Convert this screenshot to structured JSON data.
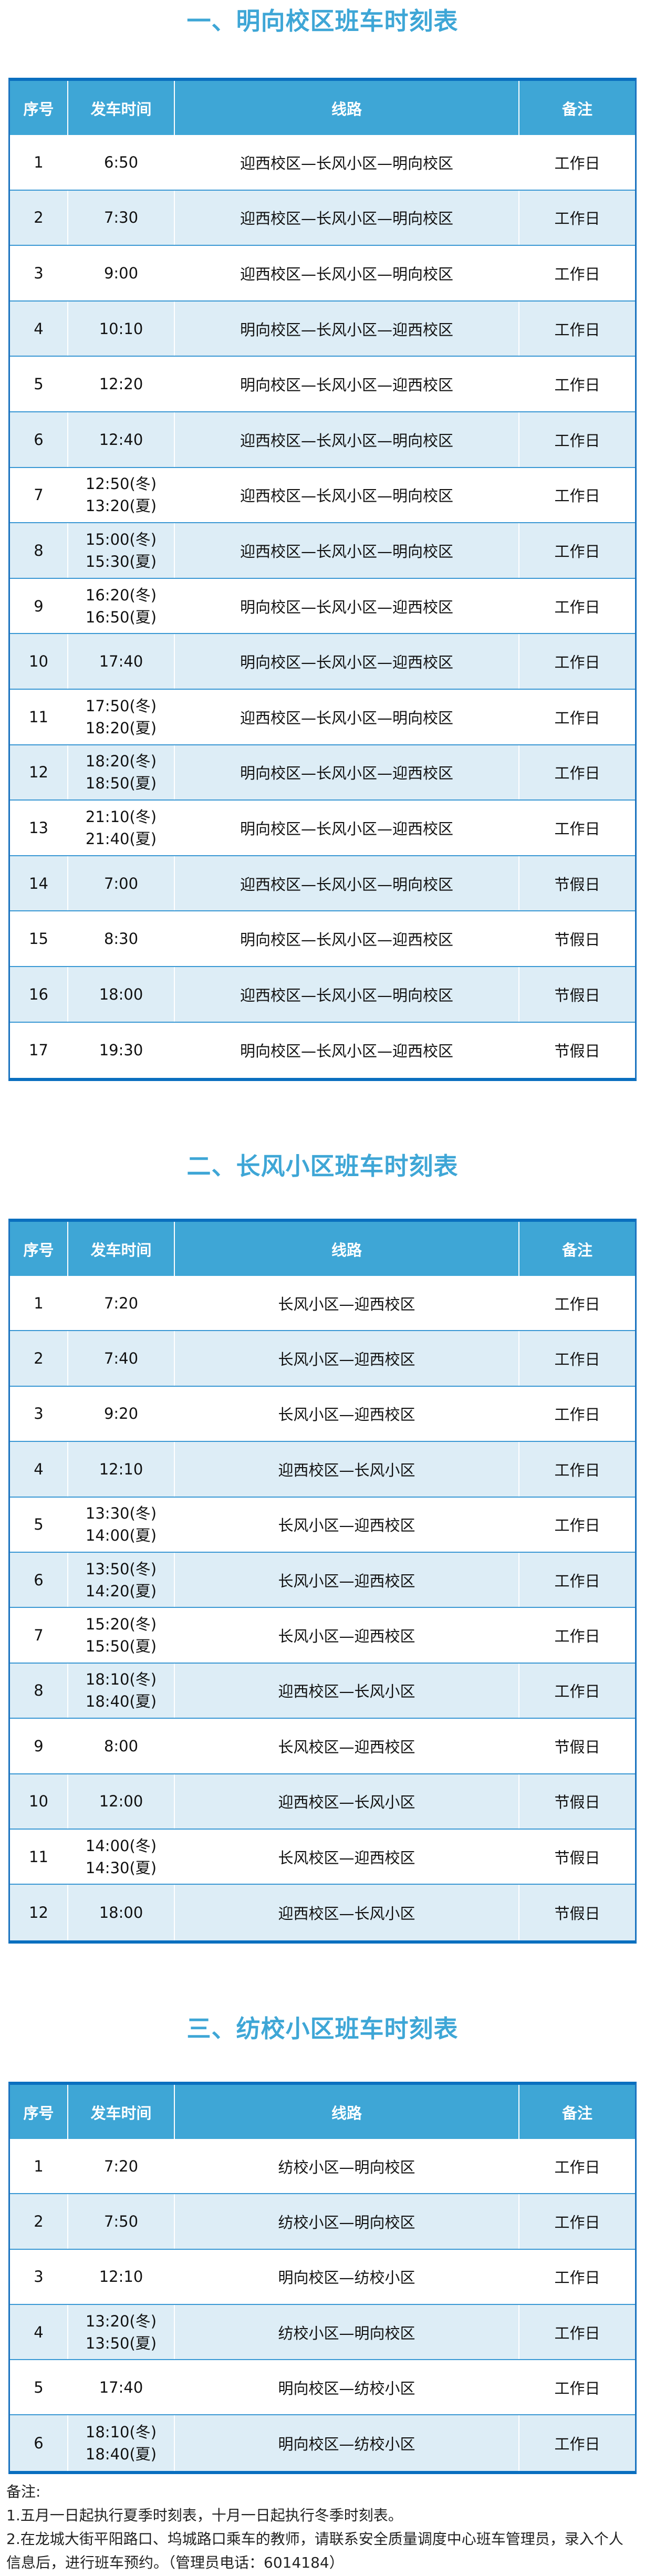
{
  "columns": [
    "序号",
    "发车时间",
    "线路",
    "备注"
  ],
  "sections": [
    {
      "title": "一、明向校区班车时刻表",
      "rows": [
        {
          "no": "1",
          "time": [
            "6:50"
          ],
          "route": "迎西校区—长风小区—明向校区",
          "note": "工作日"
        },
        {
          "no": "2",
          "time": [
            "7:30"
          ],
          "route": "迎西校区—长风小区—明向校区",
          "note": "工作日"
        },
        {
          "no": "3",
          "time": [
            "9:00"
          ],
          "route": "迎西校区—长风小区—明向校区",
          "note": "工作日"
        },
        {
          "no": "4",
          "time": [
            "10:10"
          ],
          "route": "明向校区—长风小区—迎西校区",
          "note": "工作日"
        },
        {
          "no": "5",
          "time": [
            "12:20"
          ],
          "route": "明向校区—长风小区—迎西校区",
          "note": "工作日"
        },
        {
          "no": "6",
          "time": [
            "12:40"
          ],
          "route": "迎西校区—长风小区—明向校区",
          "note": "工作日"
        },
        {
          "no": "7",
          "time": [
            "12:50(冬)",
            "13:20(夏)"
          ],
          "route": "迎西校区—长风小区—明向校区",
          "note": "工作日"
        },
        {
          "no": "8",
          "time": [
            "15:00(冬)",
            "15:30(夏)"
          ],
          "route": "迎西校区—长风小区—明向校区",
          "note": "工作日"
        },
        {
          "no": "9",
          "time": [
            "16:20(冬)",
            "16:50(夏)"
          ],
          "route": "明向校区—长风小区—迎西校区",
          "note": "工作日"
        },
        {
          "no": "10",
          "time": [
            "17:40"
          ],
          "route": "明向校区—长风小区—迎西校区",
          "note": "工作日"
        },
        {
          "no": "11",
          "time": [
            "17:50(冬)",
            "18:20(夏)"
          ],
          "route": "迎西校区—长风小区—明向校区",
          "note": "工作日"
        },
        {
          "no": "12",
          "time": [
            "18:20(冬)",
            "18:50(夏)"
          ],
          "route": "明向校区—长风小区—迎西校区",
          "note": "工作日"
        },
        {
          "no": "13",
          "time": [
            "21:10(冬)",
            "21:40(夏)"
          ],
          "route": "明向校区—长风小区—迎西校区",
          "note": "工作日"
        },
        {
          "no": "14",
          "time": [
            "7:00"
          ],
          "route": "迎西校区—长风小区—明向校区",
          "note": "节假日"
        },
        {
          "no": "15",
          "time": [
            "8:30"
          ],
          "route": "明向校区—长风小区—迎西校区",
          "note": "节假日"
        },
        {
          "no": "16",
          "time": [
            "18:00"
          ],
          "route": "迎西校区—长风小区—明向校区",
          "note": "节假日"
        },
        {
          "no": "17",
          "time": [
            "19:30"
          ],
          "route": "明向校区—长风小区—迎西校区",
          "note": "节假日"
        }
      ]
    },
    {
      "title": "二、长风小区班车时刻表",
      "rows": [
        {
          "no": "1",
          "time": [
            "7:20"
          ],
          "route": "长风小区—迎西校区",
          "note": "工作日"
        },
        {
          "no": "2",
          "time": [
            "7:40"
          ],
          "route": "长风小区—迎西校区",
          "note": "工作日"
        },
        {
          "no": "3",
          "time": [
            "9:20"
          ],
          "route": "长风小区—迎西校区",
          "note": "工作日"
        },
        {
          "no": "4",
          "time": [
            "12:10"
          ],
          "route": "迎西校区—长风小区",
          "note": "工作日"
        },
        {
          "no": "5",
          "time": [
            "13:30(冬)",
            "14:00(夏)"
          ],
          "route": "长风小区—迎西校区",
          "note": "工作日"
        },
        {
          "no": "6",
          "time": [
            "13:50(冬)",
            "14:20(夏)"
          ],
          "route": "长风小区—迎西校区",
          "note": "工作日"
        },
        {
          "no": "7",
          "time": [
            "15:20(冬)",
            "15:50(夏)"
          ],
          "route": "长风小区—迎西校区",
          "note": "工作日"
        },
        {
          "no": "8",
          "time": [
            "18:10(冬)",
            "18:40(夏)"
          ],
          "route": "迎西校区—长风小区",
          "note": "工作日"
        },
        {
          "no": "9",
          "time": [
            "8:00"
          ],
          "route": "长风校区—迎西校区",
          "note": "节假日"
        },
        {
          "no": "10",
          "time": [
            "12:00"
          ],
          "route": "迎西校区—长风小区",
          "note": "节假日"
        },
        {
          "no": "11",
          "time": [
            "14:00(冬)",
            "14:30(夏)"
          ],
          "route": "长风校区—迎西校区",
          "note": "节假日"
        },
        {
          "no": "12",
          "time": [
            "18:00"
          ],
          "route": "迎西校区—长风小区",
          "note": "节假日"
        }
      ]
    },
    {
      "title": "三、纺校小区班车时刻表",
      "rows": [
        {
          "no": "1",
          "time": [
            "7:20"
          ],
          "route": "纺校小区—明向校区",
          "note": "工作日"
        },
        {
          "no": "2",
          "time": [
            "7:50"
          ],
          "route": "纺校小区—明向校区",
          "note": "工作日"
        },
        {
          "no": "3",
          "time": [
            "12:10"
          ],
          "route": "明向校区—纺校小区",
          "note": "工作日"
        },
        {
          "no": "4",
          "time": [
            "13:20(冬)",
            "13:50(夏)"
          ],
          "route": "纺校小区—明向校区",
          "note": "工作日"
        },
        {
          "no": "5",
          "time": [
            "17:40"
          ],
          "route": "明向校区—纺校小区",
          "note": "工作日"
        },
        {
          "no": "6",
          "time": [
            "18:10(冬)",
            "18:40(夏)"
          ],
          "route": "明向校区—纺校小区",
          "note": "工作日"
        }
      ]
    }
  ],
  "notes": {
    "heading": "备注:",
    "lines": [
      "1.五月一日起执行夏季时刻表，十月一日起执行冬季时刻表。",
      "2.在龙城大街平阳路口、坞城路口乘车的教师，请联系安全质量调度中心班车管理员，录入个人信息后，进行班车预约。（管理员电话：6014184）"
    ]
  },
  "colors": {
    "title": "#3ea6d6",
    "header_bg": "#3ea6d6",
    "alt_row_bg": "#ddedf6",
    "border": "#0a6fbf"
  }
}
